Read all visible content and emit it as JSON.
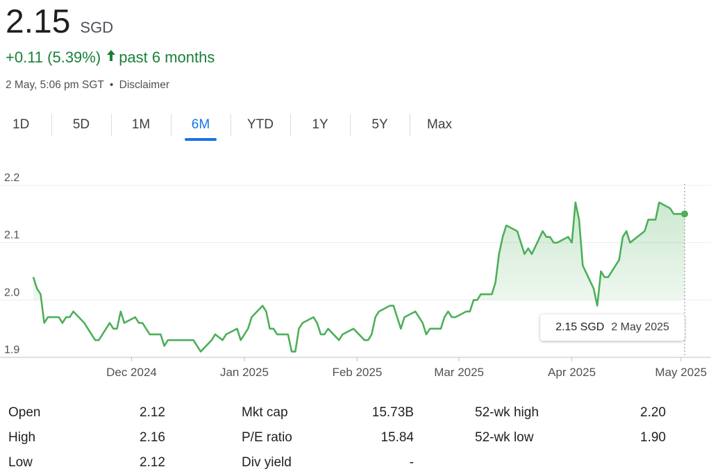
{
  "quote": {
    "price": "2.15",
    "currency": "SGD",
    "change": "+0.11 (5.39%)",
    "change_arrow": "arrow-up-icon",
    "period": "past 6 months",
    "timestamp": "2 May, 5:06 pm SGT",
    "separator": "•",
    "disclaimer": "Disclaimer"
  },
  "tabs": [
    {
      "label": "1D",
      "active": false
    },
    {
      "label": "5D",
      "active": false
    },
    {
      "label": "1M",
      "active": false
    },
    {
      "label": "6M",
      "active": true
    },
    {
      "label": "YTD",
      "active": false
    },
    {
      "label": "1Y",
      "active": false
    },
    {
      "label": "5Y",
      "active": false
    },
    {
      "label": "Max",
      "active": false
    }
  ],
  "tooltip": {
    "price": "2.15 SGD",
    "date": "2 May 2025"
  },
  "stats": [
    {
      "label": "Open",
      "value": "2.12"
    },
    {
      "label": "High",
      "value": "2.16"
    },
    {
      "label": "Low",
      "value": "2.12"
    },
    {
      "label": "Mkt cap",
      "value": "15.73B"
    },
    {
      "label": "P/E ratio",
      "value": "15.84"
    },
    {
      "label": "Div yield",
      "value": "-"
    },
    {
      "label": "52-wk high",
      "value": "2.20"
    },
    {
      "label": "52-wk low",
      "value": "1.90"
    }
  ],
  "colors": {
    "line": "#4caf5a",
    "up": "#188038",
    "accent": "#1a73e8",
    "grid": "#ececec"
  },
  "chart_data": {
    "type": "area",
    "x_range": [
      "2024-11-04",
      "2025-05-02"
    ],
    "ylim": [
      1.9,
      2.2
    ],
    "yticks": [
      1.9,
      2.0,
      2.1,
      2.2
    ],
    "ytick_labels": [
      "1.9",
      "2.0",
      "2.1",
      "2.2"
    ],
    "xticks": [
      {
        "date": "2024-12-01",
        "label": "Dec 2024"
      },
      {
        "date": "2025-01-01",
        "label": "Jan 2025"
      },
      {
        "date": "2025-02-01",
        "label": "Feb 2025"
      },
      {
        "date": "2025-03-01",
        "label": "Mar 2025"
      },
      {
        "date": "2025-04-01",
        "label": "Apr 2025"
      },
      {
        "date": "2025-05-01",
        "label": "May 2025"
      }
    ],
    "previous_close_line": false,
    "series": [
      {
        "points": [
          [
            "2024-11-04",
            2.04
          ],
          [
            "2024-11-05",
            2.02
          ],
          [
            "2024-11-06",
            2.01
          ],
          [
            "2024-11-07",
            1.96
          ],
          [
            "2024-11-08",
            1.97
          ],
          [
            "2024-11-11",
            1.97
          ],
          [
            "2024-11-12",
            1.96
          ],
          [
            "2024-11-13",
            1.97
          ],
          [
            "2024-11-14",
            1.97
          ],
          [
            "2024-11-15",
            1.98
          ],
          [
            "2024-11-18",
            1.96
          ],
          [
            "2024-11-19",
            1.95
          ],
          [
            "2024-11-20",
            1.94
          ],
          [
            "2024-11-21",
            1.93
          ],
          [
            "2024-11-22",
            1.93
          ],
          [
            "2024-11-25",
            1.96
          ],
          [
            "2024-11-26",
            1.95
          ],
          [
            "2024-11-27",
            1.95
          ],
          [
            "2024-11-28",
            1.98
          ],
          [
            "2024-11-29",
            1.96
          ],
          [
            "2024-12-02",
            1.97
          ],
          [
            "2024-12-03",
            1.96
          ],
          [
            "2024-12-04",
            1.96
          ],
          [
            "2024-12-05",
            1.95
          ],
          [
            "2024-12-06",
            1.94
          ],
          [
            "2024-12-09",
            1.94
          ],
          [
            "2024-12-10",
            1.92
          ],
          [
            "2024-12-11",
            1.93
          ],
          [
            "2024-12-12",
            1.93
          ],
          [
            "2024-12-13",
            1.93
          ],
          [
            "2024-12-16",
            1.93
          ],
          [
            "2024-12-17",
            1.93
          ],
          [
            "2024-12-18",
            1.93
          ],
          [
            "2024-12-19",
            1.92
          ],
          [
            "2024-12-20",
            1.91
          ],
          [
            "2024-12-23",
            1.93
          ],
          [
            "2024-12-24",
            1.94
          ],
          [
            "2024-12-26",
            1.93
          ],
          [
            "2024-12-27",
            1.94
          ],
          [
            "2024-12-30",
            1.95
          ],
          [
            "2024-12-31",
            1.93
          ],
          [
            "2025-01-02",
            1.95
          ],
          [
            "2025-01-03",
            1.97
          ],
          [
            "2025-01-06",
            1.99
          ],
          [
            "2025-01-07",
            1.98
          ],
          [
            "2025-01-08",
            1.95
          ],
          [
            "2025-01-09",
            1.95
          ],
          [
            "2025-01-10",
            1.94
          ],
          [
            "2025-01-13",
            1.94
          ],
          [
            "2025-01-14",
            1.91
          ],
          [
            "2025-01-15",
            1.91
          ],
          [
            "2025-01-16",
            1.95
          ],
          [
            "2025-01-17",
            1.96
          ],
          [
            "2025-01-20",
            1.97
          ],
          [
            "2025-01-21",
            1.96
          ],
          [
            "2025-01-22",
            1.94
          ],
          [
            "2025-01-23",
            1.94
          ],
          [
            "2025-01-24",
            1.95
          ],
          [
            "2025-01-27",
            1.93
          ],
          [
            "2025-01-28",
            1.94
          ],
          [
            "2025-01-31",
            1.95
          ],
          [
            "2025-02-03",
            1.93
          ],
          [
            "2025-02-04",
            1.93
          ],
          [
            "2025-02-05",
            1.94
          ],
          [
            "2025-02-06",
            1.97
          ],
          [
            "2025-02-07",
            1.98
          ],
          [
            "2025-02-10",
            1.99
          ],
          [
            "2025-02-11",
            1.99
          ],
          [
            "2025-02-12",
            1.97
          ],
          [
            "2025-02-13",
            1.95
          ],
          [
            "2025-02-14",
            1.97
          ],
          [
            "2025-02-17",
            1.98
          ],
          [
            "2025-02-18",
            1.97
          ],
          [
            "2025-02-19",
            1.96
          ],
          [
            "2025-02-20",
            1.94
          ],
          [
            "2025-02-21",
            1.95
          ],
          [
            "2025-02-24",
            1.95
          ],
          [
            "2025-02-25",
            1.97
          ],
          [
            "2025-02-26",
            1.98
          ],
          [
            "2025-02-27",
            1.97
          ],
          [
            "2025-02-28",
            1.97
          ],
          [
            "2025-03-03",
            1.98
          ],
          [
            "2025-03-04",
            1.98
          ],
          [
            "2025-03-05",
            2.0
          ],
          [
            "2025-03-06",
            2.0
          ],
          [
            "2025-03-07",
            2.01
          ],
          [
            "2025-03-10",
            2.01
          ],
          [
            "2025-03-11",
            2.03
          ],
          [
            "2025-03-12",
            2.08
          ],
          [
            "2025-03-13",
            2.11
          ],
          [
            "2025-03-14",
            2.13
          ],
          [
            "2025-03-17",
            2.12
          ],
          [
            "2025-03-18",
            2.1
          ],
          [
            "2025-03-19",
            2.08
          ],
          [
            "2025-03-20",
            2.09
          ],
          [
            "2025-03-21",
            2.08
          ],
          [
            "2025-03-24",
            2.12
          ],
          [
            "2025-03-25",
            2.11
          ],
          [
            "2025-03-26",
            2.11
          ],
          [
            "2025-03-27",
            2.1
          ],
          [
            "2025-03-28",
            2.1
          ],
          [
            "2025-03-31",
            2.11
          ],
          [
            "2025-04-01",
            2.1
          ],
          [
            "2025-04-02",
            2.17
          ],
          [
            "2025-04-03",
            2.14
          ],
          [
            "2025-04-04",
            2.06
          ],
          [
            "2025-04-07",
            2.02
          ],
          [
            "2025-04-08",
            1.99
          ],
          [
            "2025-04-09",
            2.05
          ],
          [
            "2025-04-10",
            2.04
          ],
          [
            "2025-04-11",
            2.04
          ],
          [
            "2025-04-14",
            2.07
          ],
          [
            "2025-04-15",
            2.11
          ],
          [
            "2025-04-16",
            2.12
          ],
          [
            "2025-04-17",
            2.1
          ],
          [
            "2025-04-21",
            2.12
          ],
          [
            "2025-04-22",
            2.14
          ],
          [
            "2025-04-23",
            2.14
          ],
          [
            "2025-04-24",
            2.14
          ],
          [
            "2025-04-25",
            2.17
          ],
          [
            "2025-04-28",
            2.16
          ],
          [
            "2025-04-29",
            2.15
          ],
          [
            "2025-04-30",
            2.15
          ],
          [
            "2025-05-02",
            2.15
          ]
        ]
      }
    ]
  }
}
